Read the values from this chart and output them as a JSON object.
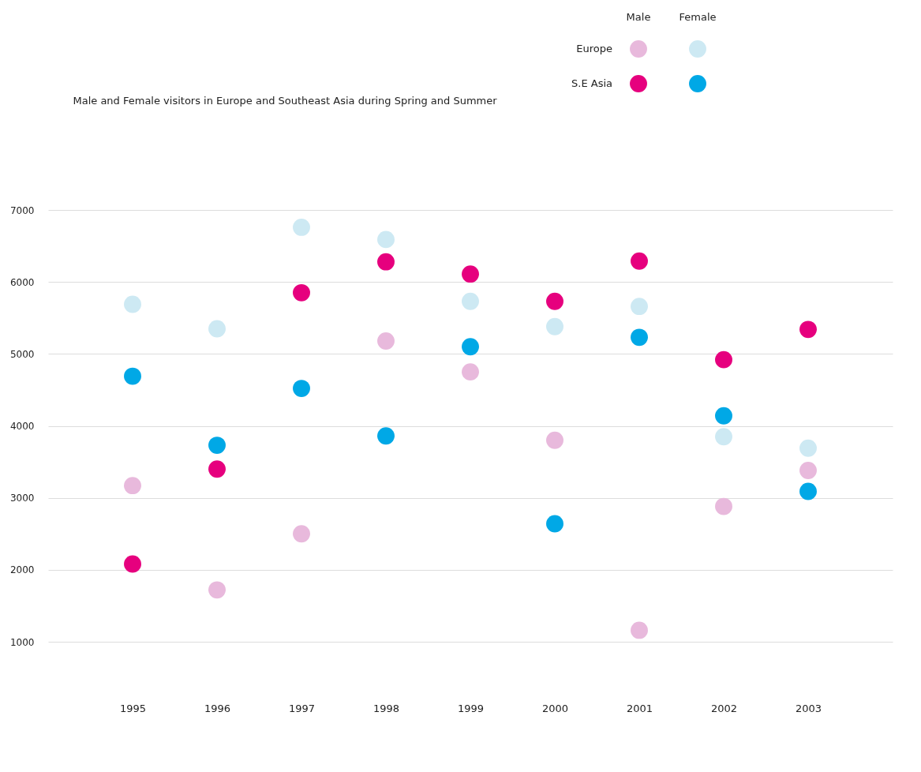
{
  "chart_data": {
    "type": "scatter",
    "title": "Male and Female visitors in Europe and Southeast Asia during Spring and Summer",
    "categories": [
      "1995",
      "1996",
      "1997",
      "1998",
      "1999",
      "2000",
      "2001",
      "2002",
      "2003"
    ],
    "series": [
      {
        "color": "#e8b9dc",
        "values": [
          3170,
          1720,
          2500,
          5180,
          4750,
          3800,
          1160,
          2880,
          3380
        ]
      },
      {
        "color": "#cde9f3",
        "values": [
          5690,
          5350,
          6760,
          6590,
          5730,
          5380,
          5660,
          3850,
          3690
        ]
      },
      {
        "color": "#e6007e",
        "values": [
          2080,
          3400,
          5850,
          6280,
          6110,
          5730,
          6290,
          4920,
          5340
        ]
      },
      {
        "color": "#00a8e6",
        "values": [
          4690,
          3730,
          4520,
          3860,
          5100,
          2640,
          5230,
          4140,
          3090
        ]
      }
    ],
    "annotations": [
      "Male",
      "Female",
      "Europe",
      "S.E Asia"
    ],
    "ylim": [
      1000,
      7000
    ],
    "yticks": [
      1000,
      2000,
      3000,
      4000,
      5000,
      6000,
      7000
    ],
    "grid": "y",
    "marker": "circle"
  }
}
